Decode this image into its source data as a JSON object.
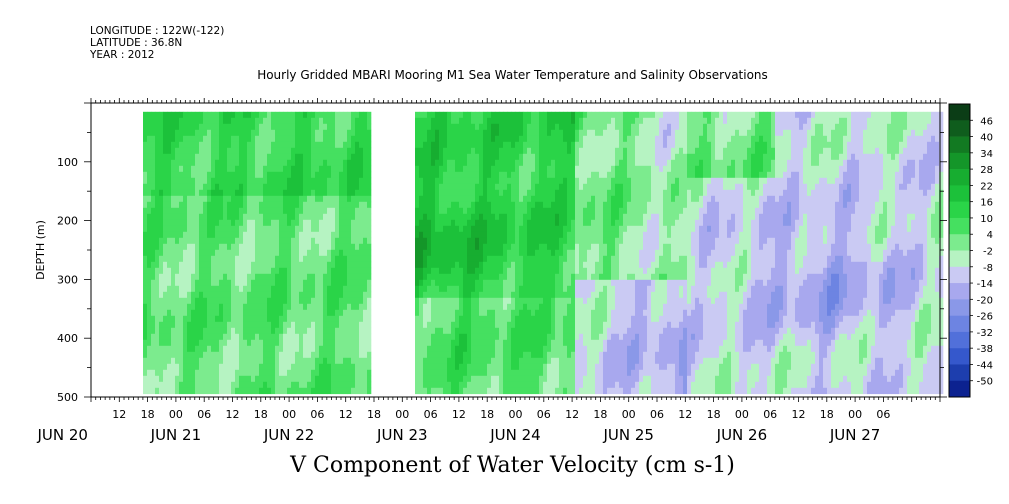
{
  "header": {
    "longitude": "LONGITUDE : 122W(-122)",
    "latitude": "LATITUDE : 36.8N",
    "year": "YEAR : 2012"
  },
  "title": "Hourly Gridded MBARI Mooring M1 Sea Water Temperature and Salinity Observations",
  "footer": "V Component of Water Velocity (cm s-1)",
  "chart_data": {
    "type": "heatmap",
    "variable": "V Component of Water Velocity (cm s-1)",
    "x_axis": {
      "hour_tick_labels": [
        "12",
        "18",
        "00",
        "06",
        "12",
        "18",
        "00",
        "06",
        "12",
        "18",
        "00",
        "06",
        "12",
        "18",
        "00",
        "06",
        "12",
        "18",
        "00",
        "06",
        "12",
        "18",
        "00",
        "06",
        "12",
        "18",
        "00",
        "06"
      ],
      "day_labels": [
        "JUN 20",
        "JUN 21",
        "JUN 22",
        "JUN 23",
        "JUN 24",
        "JUN 25",
        "JUN 26",
        "JUN 27"
      ],
      "range": [
        "JUN 20 06:00",
        "JUN 27 18:00"
      ]
    },
    "y_axis": {
      "label": "DEPTH (m)",
      "tick_labels": [
        "100",
        "200",
        "300",
        "400",
        "500"
      ],
      "ylim": [
        0,
        500
      ],
      "inverted": true
    },
    "colorbar": {
      "levels": [
        48,
        46,
        40,
        34,
        28,
        22,
        16,
        10,
        4,
        -2,
        -8,
        -14,
        -20,
        -26,
        -32,
        -38,
        -44,
        -50
      ],
      "tick_labels": [
        "46",
        "40",
        "34",
        "28",
        "22",
        "16",
        "10",
        "4",
        "-2",
        "-8",
        "-14",
        "-20",
        "-26",
        "-32",
        "-38",
        "-44",
        "-50"
      ],
      "colors": [
        "#0b3d16",
        "#0f5d1d",
        "#127a22",
        "#149629",
        "#17ad30",
        "#1cc13a",
        "#2ad448",
        "#45e060",
        "#7ceb8e",
        "#b6f3c2",
        "#cacaf3",
        "#a8a8ee",
        "#8a98e8",
        "#6d84e2",
        "#5170da",
        "#3558cc",
        "#1d3eae",
        "#0c2290"
      ]
    },
    "data_gaps": [
      {
        "from": "JUN 20 06:00",
        "to": "JUN 20 17:00",
        "depth": "all"
      },
      {
        "from": "JUN 22 17:00",
        "to": "JUN 23 02:00",
        "depth": "all"
      }
    ],
    "regions": [
      {
        "from": "JUN 20 17:00",
        "to": "JUN 22 17:00",
        "v_range": [
          -14,
          16
        ],
        "pattern": "mixed; mostly positive near surface"
      },
      {
        "from": "JUN 23 02:00",
        "to": "JUN 24 12:00",
        "v_range": [
          -8,
          28
        ],
        "pattern": "strongly positive, peak ~28 at 200-260 m on JUN 23"
      },
      {
        "from": "JUN 24 12:00",
        "to": "JUN 25 12:00",
        "v_range": [
          -20,
          16
        ],
        "pattern": "transition, negative below 300 m"
      },
      {
        "from": "JUN 25 12:00",
        "to": "JUN 27 18:00",
        "v_range": [
          -26,
          10
        ],
        "pattern": "mostly negative, minimum ~ -26 around 250-350 m on JUN 26"
      }
    ]
  }
}
